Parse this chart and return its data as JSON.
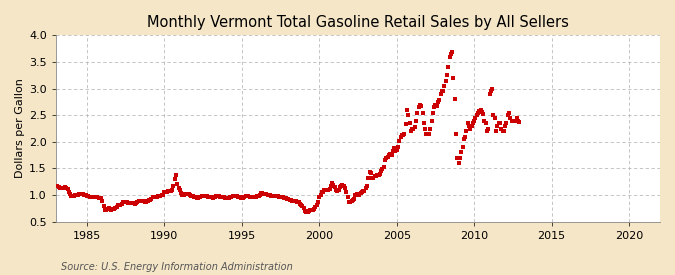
{
  "title": "Monthly Vermont Total Gasoline Retail Sales by All Sellers",
  "ylabel": "Dollars per Gallon",
  "source_text": "Source: U.S. Energy Information Administration",
  "xlim": [
    1983,
    2022
  ],
  "ylim": [
    0.5,
    4.0
  ],
  "xticks": [
    1985,
    1990,
    1995,
    2000,
    2005,
    2010,
    2015,
    2020
  ],
  "yticks": [
    0.5,
    1.0,
    1.5,
    2.0,
    2.5,
    3.0,
    3.5,
    4.0
  ],
  "figure_bg_color": "#f5e6c8",
  "plot_bg_color": "#ffffff",
  "dot_color": "#cc0000",
  "dot_size": 7,
  "title_fontsize": 10.5,
  "label_fontsize": 8,
  "tick_fontsize": 8,
  "source_fontsize": 7,
  "data": [
    [
      1983.0,
      1.179
    ],
    [
      1983.083,
      1.163
    ],
    [
      1983.167,
      1.156
    ],
    [
      1983.25,
      1.128
    ],
    [
      1983.333,
      1.124
    ],
    [
      1983.417,
      1.124
    ],
    [
      1983.5,
      1.132
    ],
    [
      1983.583,
      1.145
    ],
    [
      1983.667,
      1.133
    ],
    [
      1983.75,
      1.108
    ],
    [
      1983.833,
      1.062
    ],
    [
      1983.917,
      1.023
    ],
    [
      1984.0,
      0.99
    ],
    [
      1984.083,
      0.988
    ],
    [
      1984.167,
      0.978
    ],
    [
      1984.25,
      0.996
    ],
    [
      1984.333,
      1.009
    ],
    [
      1984.417,
      1.01
    ],
    [
      1984.5,
      1.022
    ],
    [
      1984.583,
      1.019
    ],
    [
      1984.667,
      1.023
    ],
    [
      1984.75,
      1.02
    ],
    [
      1984.833,
      0.997
    ],
    [
      1984.917,
      0.993
    ],
    [
      1985.0,
      0.992
    ],
    [
      1985.083,
      0.976
    ],
    [
      1985.167,
      0.962
    ],
    [
      1985.25,
      0.956
    ],
    [
      1985.333,
      0.965
    ],
    [
      1985.417,
      0.966
    ],
    [
      1985.5,
      0.965
    ],
    [
      1985.583,
      0.969
    ],
    [
      1985.667,
      0.961
    ],
    [
      1985.75,
      0.95
    ],
    [
      1985.833,
      0.946
    ],
    [
      1985.917,
      0.94
    ],
    [
      1986.0,
      0.895
    ],
    [
      1986.083,
      0.796
    ],
    [
      1986.167,
      0.714
    ],
    [
      1986.25,
      0.713
    ],
    [
      1986.333,
      0.733
    ],
    [
      1986.417,
      0.754
    ],
    [
      1986.5,
      0.733
    ],
    [
      1986.583,
      0.725
    ],
    [
      1986.667,
      0.731
    ],
    [
      1986.75,
      0.736
    ],
    [
      1986.833,
      0.76
    ],
    [
      1986.917,
      0.772
    ],
    [
      1987.0,
      0.81
    ],
    [
      1987.083,
      0.82
    ],
    [
      1987.167,
      0.82
    ],
    [
      1987.25,
      0.84
    ],
    [
      1987.333,
      0.87
    ],
    [
      1987.417,
      0.865
    ],
    [
      1987.5,
      0.87
    ],
    [
      1987.583,
      0.87
    ],
    [
      1987.667,
      0.86
    ],
    [
      1987.75,
      0.845
    ],
    [
      1987.833,
      0.855
    ],
    [
      1987.917,
      0.85
    ],
    [
      1988.0,
      0.85
    ],
    [
      1988.083,
      0.84
    ],
    [
      1988.167,
      0.845
    ],
    [
      1988.25,
      0.865
    ],
    [
      1988.333,
      0.885
    ],
    [
      1988.417,
      0.89
    ],
    [
      1988.5,
      0.895
    ],
    [
      1988.583,
      0.885
    ],
    [
      1988.667,
      0.88
    ],
    [
      1988.75,
      0.875
    ],
    [
      1988.833,
      0.87
    ],
    [
      1988.917,
      0.88
    ],
    [
      1989.0,
      0.9
    ],
    [
      1989.083,
      0.91
    ],
    [
      1989.167,
      0.935
    ],
    [
      1989.25,
      0.96
    ],
    [
      1989.333,
      0.97
    ],
    [
      1989.417,
      0.965
    ],
    [
      1989.5,
      0.97
    ],
    [
      1989.583,
      0.975
    ],
    [
      1989.667,
      0.985
    ],
    [
      1989.75,
      0.99
    ],
    [
      1989.833,
      1.0
    ],
    [
      1989.917,
      1.01
    ],
    [
      1990.0,
      1.05
    ],
    [
      1990.083,
      1.055
    ],
    [
      1990.167,
      1.065
    ],
    [
      1990.25,
      1.075
    ],
    [
      1990.333,
      1.08
    ],
    [
      1990.417,
      1.085
    ],
    [
      1990.5,
      1.09
    ],
    [
      1990.583,
      1.175
    ],
    [
      1990.667,
      1.31
    ],
    [
      1990.75,
      1.38
    ],
    [
      1990.833,
      1.2
    ],
    [
      1990.917,
      1.14
    ],
    [
      1991.0,
      1.1
    ],
    [
      1991.083,
      1.04
    ],
    [
      1991.167,
      1.01
    ],
    [
      1991.25,
      1.0
    ],
    [
      1991.333,
      1.015
    ],
    [
      1991.417,
      1.02
    ],
    [
      1991.5,
      1.025
    ],
    [
      1991.583,
      1.02
    ],
    [
      1991.667,
      1.01
    ],
    [
      1991.75,
      0.99
    ],
    [
      1991.833,
      0.985
    ],
    [
      1991.917,
      0.97
    ],
    [
      1992.0,
      0.96
    ],
    [
      1992.083,
      0.95
    ],
    [
      1992.167,
      0.945
    ],
    [
      1992.25,
      0.96
    ],
    [
      1992.333,
      0.97
    ],
    [
      1992.417,
      0.985
    ],
    [
      1992.5,
      0.99
    ],
    [
      1992.583,
      0.985
    ],
    [
      1992.667,
      0.98
    ],
    [
      1992.75,
      0.975
    ],
    [
      1992.833,
      0.97
    ],
    [
      1992.917,
      0.965
    ],
    [
      1993.0,
      0.96
    ],
    [
      1993.083,
      0.955
    ],
    [
      1993.167,
      0.95
    ],
    [
      1993.25,
      0.96
    ],
    [
      1993.333,
      0.975
    ],
    [
      1993.417,
      0.98
    ],
    [
      1993.5,
      0.975
    ],
    [
      1993.583,
      0.97
    ],
    [
      1993.667,
      0.97
    ],
    [
      1993.75,
      0.965
    ],
    [
      1993.833,
      0.955
    ],
    [
      1993.917,
      0.95
    ],
    [
      1994.0,
      0.945
    ],
    [
      1994.083,
      0.94
    ],
    [
      1994.167,
      0.945
    ],
    [
      1994.25,
      0.955
    ],
    [
      1994.333,
      0.97
    ],
    [
      1994.417,
      0.98
    ],
    [
      1994.5,
      0.985
    ],
    [
      1994.583,
      0.98
    ],
    [
      1994.667,
      0.975
    ],
    [
      1994.75,
      0.97
    ],
    [
      1994.833,
      0.96
    ],
    [
      1994.917,
      0.95
    ],
    [
      1995.0,
      0.955
    ],
    [
      1995.083,
      0.95
    ],
    [
      1995.167,
      0.965
    ],
    [
      1995.25,
      0.975
    ],
    [
      1995.333,
      0.985
    ],
    [
      1995.417,
      0.975
    ],
    [
      1995.5,
      0.97
    ],
    [
      1995.583,
      0.965
    ],
    [
      1995.667,
      0.965
    ],
    [
      1995.75,
      0.96
    ],
    [
      1995.833,
      0.97
    ],
    [
      1995.917,
      0.96
    ],
    [
      1996.0,
      0.975
    ],
    [
      1996.083,
      0.98
    ],
    [
      1996.167,
      1.01
    ],
    [
      1996.25,
      1.035
    ],
    [
      1996.333,
      1.04
    ],
    [
      1996.417,
      1.02
    ],
    [
      1996.5,
      1.015
    ],
    [
      1996.583,
      1.015
    ],
    [
      1996.667,
      1.01
    ],
    [
      1996.75,
      1.005
    ],
    [
      1996.833,
      1.0
    ],
    [
      1996.917,
      0.99
    ],
    [
      1997.0,
      0.985
    ],
    [
      1997.083,
      0.98
    ],
    [
      1997.167,
      0.99
    ],
    [
      1997.25,
      0.985
    ],
    [
      1997.333,
      0.975
    ],
    [
      1997.417,
      0.97
    ],
    [
      1997.5,
      0.97
    ],
    [
      1997.583,
      0.96
    ],
    [
      1997.667,
      0.955
    ],
    [
      1997.75,
      0.95
    ],
    [
      1997.833,
      0.945
    ],
    [
      1997.917,
      0.935
    ],
    [
      1998.0,
      0.92
    ],
    [
      1998.083,
      0.905
    ],
    [
      1998.167,
      0.9
    ],
    [
      1998.25,
      0.895
    ],
    [
      1998.333,
      0.895
    ],
    [
      1998.417,
      0.89
    ],
    [
      1998.5,
      0.885
    ],
    [
      1998.583,
      0.875
    ],
    [
      1998.667,
      0.865
    ],
    [
      1998.75,
      0.84
    ],
    [
      1998.833,
      0.82
    ],
    [
      1998.917,
      0.8
    ],
    [
      1999.0,
      0.75
    ],
    [
      1999.083,
      0.7
    ],
    [
      1999.167,
      0.68
    ],
    [
      1999.25,
      0.69
    ],
    [
      1999.333,
      0.7
    ],
    [
      1999.417,
      0.72
    ],
    [
      1999.5,
      0.72
    ],
    [
      1999.583,
      0.72
    ],
    [
      1999.667,
      0.73
    ],
    [
      1999.75,
      0.77
    ],
    [
      1999.833,
      0.82
    ],
    [
      1999.917,
      0.87
    ],
    [
      2000.0,
      0.97
    ],
    [
      2000.083,
      1.0
    ],
    [
      2000.167,
      1.05
    ],
    [
      2000.25,
      1.06
    ],
    [
      2000.333,
      1.1
    ],
    [
      2000.417,
      1.1
    ],
    [
      2000.5,
      1.09
    ],
    [
      2000.583,
      1.1
    ],
    [
      2000.667,
      1.12
    ],
    [
      2000.75,
      1.18
    ],
    [
      2000.833,
      1.22
    ],
    [
      2000.917,
      1.19
    ],
    [
      2001.0,
      1.16
    ],
    [
      2001.083,
      1.1
    ],
    [
      2001.167,
      1.08
    ],
    [
      2001.25,
      1.1
    ],
    [
      2001.333,
      1.15
    ],
    [
      2001.417,
      1.18
    ],
    [
      2001.5,
      1.19
    ],
    [
      2001.583,
      1.18
    ],
    [
      2001.667,
      1.13
    ],
    [
      2001.75,
      1.05
    ],
    [
      2001.833,
      0.96
    ],
    [
      2001.917,
      0.87
    ],
    [
      2002.0,
      0.87
    ],
    [
      2002.083,
      0.89
    ],
    [
      2002.167,
      0.9
    ],
    [
      2002.25,
      0.92
    ],
    [
      2002.333,
      1.01
    ],
    [
      2002.417,
      1.02
    ],
    [
      2002.5,
      1.0
    ],
    [
      2002.583,
      1.01
    ],
    [
      2002.667,
      1.03
    ],
    [
      2002.75,
      1.05
    ],
    [
      2002.833,
      1.08
    ],
    [
      2002.917,
      1.08
    ],
    [
      2003.0,
      1.14
    ],
    [
      2003.083,
      1.18
    ],
    [
      2003.167,
      1.32
    ],
    [
      2003.25,
      1.43
    ],
    [
      2003.333,
      1.42
    ],
    [
      2003.417,
      1.33
    ],
    [
      2003.5,
      1.33
    ],
    [
      2003.583,
      1.35
    ],
    [
      2003.667,
      1.36
    ],
    [
      2003.75,
      1.38
    ],
    [
      2003.833,
      1.38
    ],
    [
      2003.917,
      1.4
    ],
    [
      2004.0,
      1.45
    ],
    [
      2004.083,
      1.49
    ],
    [
      2004.167,
      1.52
    ],
    [
      2004.25,
      1.65
    ],
    [
      2004.333,
      1.7
    ],
    [
      2004.417,
      1.72
    ],
    [
      2004.5,
      1.75
    ],
    [
      2004.583,
      1.77
    ],
    [
      2004.667,
      1.76
    ],
    [
      2004.75,
      1.83
    ],
    [
      2004.833,
      1.88
    ],
    [
      2004.917,
      1.82
    ],
    [
      2005.0,
      1.85
    ],
    [
      2005.083,
      1.9
    ],
    [
      2005.167,
      2.01
    ],
    [
      2005.25,
      2.1
    ],
    [
      2005.333,
      2.12
    ],
    [
      2005.417,
      2.12
    ],
    [
      2005.5,
      2.15
    ],
    [
      2005.583,
      2.34
    ],
    [
      2005.667,
      2.6
    ],
    [
      2005.75,
      2.5
    ],
    [
      2005.833,
      2.35
    ],
    [
      2005.917,
      2.2
    ],
    [
      2006.0,
      2.25
    ],
    [
      2006.083,
      2.25
    ],
    [
      2006.167,
      2.28
    ],
    [
      2006.25,
      2.4
    ],
    [
      2006.333,
      2.55
    ],
    [
      2006.417,
      2.65
    ],
    [
      2006.5,
      2.7
    ],
    [
      2006.583,
      2.68
    ],
    [
      2006.667,
      2.55
    ],
    [
      2006.75,
      2.35
    ],
    [
      2006.833,
      2.25
    ],
    [
      2006.917,
      2.15
    ],
    [
      2007.0,
      2.15
    ],
    [
      2007.083,
      2.15
    ],
    [
      2007.167,
      2.25
    ],
    [
      2007.25,
      2.4
    ],
    [
      2007.333,
      2.55
    ],
    [
      2007.417,
      2.65
    ],
    [
      2007.5,
      2.7
    ],
    [
      2007.583,
      2.68
    ],
    [
      2007.667,
      2.75
    ],
    [
      2007.75,
      2.78
    ],
    [
      2007.833,
      2.9
    ],
    [
      2007.917,
      2.95
    ],
    [
      2008.0,
      2.95
    ],
    [
      2008.083,
      3.05
    ],
    [
      2008.167,
      3.15
    ],
    [
      2008.25,
      3.25
    ],
    [
      2008.333,
      3.4
    ],
    [
      2008.417,
      3.6
    ],
    [
      2008.5,
      3.65
    ],
    [
      2008.583,
      3.68
    ],
    [
      2008.667,
      3.2
    ],
    [
      2008.75,
      2.8
    ],
    [
      2008.833,
      2.15
    ],
    [
      2008.917,
      1.7
    ],
    [
      2009.0,
      1.6
    ],
    [
      2009.083,
      1.7
    ],
    [
      2009.167,
      1.8
    ],
    [
      2009.25,
      1.9
    ],
    [
      2009.333,
      2.05
    ],
    [
      2009.417,
      2.1
    ],
    [
      2009.5,
      2.2
    ],
    [
      2009.583,
      2.35
    ],
    [
      2009.667,
      2.3
    ],
    [
      2009.75,
      2.25
    ],
    [
      2009.833,
      2.3
    ],
    [
      2009.917,
      2.35
    ],
    [
      2010.0,
      2.4
    ],
    [
      2010.083,
      2.45
    ],
    [
      2010.167,
      2.5
    ],
    [
      2010.25,
      2.55
    ],
    [
      2010.333,
      2.58
    ],
    [
      2010.417,
      2.6
    ],
    [
      2010.5,
      2.56
    ],
    [
      2010.583,
      2.52
    ],
    [
      2010.667,
      2.4
    ],
    [
      2010.75,
      2.35
    ],
    [
      2010.833,
      2.2
    ],
    [
      2010.917,
      2.25
    ],
    [
      2011.0,
      2.9
    ],
    [
      2011.083,
      2.95
    ],
    [
      2011.167,
      3.0
    ],
    [
      2011.25,
      2.5
    ],
    [
      2011.333,
      2.45
    ],
    [
      2011.417,
      2.2
    ],
    [
      2011.5,
      2.3
    ],
    [
      2011.583,
      2.35
    ],
    [
      2011.667,
      2.35
    ],
    [
      2011.75,
      2.25
    ],
    [
      2011.833,
      2.2
    ],
    [
      2011.917,
      2.2
    ],
    [
      2012.0,
      2.3
    ],
    [
      2012.083,
      2.35
    ],
    [
      2012.167,
      2.5
    ],
    [
      2012.25,
      2.55
    ],
    [
      2012.333,
      2.45
    ],
    [
      2012.417,
      2.4
    ],
    [
      2012.5,
      2.4
    ],
    [
      2012.583,
      2.4
    ],
    [
      2012.667,
      2.4
    ],
    [
      2012.75,
      2.45
    ],
    [
      2012.833,
      2.4
    ],
    [
      2012.917,
      2.38
    ]
  ]
}
